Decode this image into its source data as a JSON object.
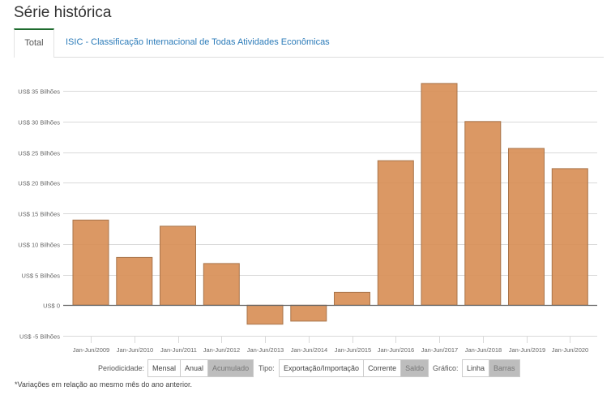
{
  "page": {
    "title": "Série histórica"
  },
  "tabs": [
    {
      "label": "Total",
      "active": true
    },
    {
      "label": "ISIC - Classificação Internacional de Todas Atividades Econômicas",
      "active": false
    }
  ],
  "chart_data": {
    "type": "bar",
    "title": "",
    "xlabel": "",
    "ylabel": "",
    "categories": [
      "Jan-Jun/2009",
      "Jan-Jun/2010",
      "Jan-Jun/2011",
      "Jan-Jun/2012",
      "Jan-Jun/2013",
      "Jan-Jun/2014",
      "Jan-Jun/2015",
      "Jan-Jun/2016",
      "Jan-Jun/2017",
      "Jan-Jun/2018",
      "Jan-Jun/2019",
      "Jan-Jun/2020"
    ],
    "series": [
      {
        "name": "Saldo",
        "unit": "US$ Bilhões",
        "values": [
          13.9,
          7.8,
          12.9,
          6.8,
          -3.1,
          -2.6,
          2.1,
          23.6,
          36.2,
          30.0,
          25.6,
          22.3
        ]
      }
    ],
    "ylim": [
      -5,
      35
    ],
    "yticks": [
      35,
      30,
      25,
      20,
      15,
      10,
      5,
      0,
      -5
    ],
    "ytick_labels": [
      "US$ 35 Bilhões",
      "US$ 30 Bilhões",
      "US$ 25 Bilhões",
      "US$ 20 Bilhões",
      "US$ 15 Bilhões",
      "US$ 10 Bilhões",
      "US$ 5 Bilhões",
      "US$ 0",
      "US$ -5 Bilhões"
    ],
    "grid": true,
    "legend": "none",
    "colors": {
      "bar_fill": "#d88f57",
      "bar_stroke": "#a8744a",
      "grid": "#d9d9d9",
      "zero_line": "#666666",
      "tick_text": "#666666"
    }
  },
  "controls": {
    "periodicidade": {
      "label": "Periodicidade:",
      "options": [
        "Mensal",
        "Anual",
        "Acumulado"
      ],
      "selected": "Acumulado"
    },
    "tipo": {
      "label": "Tipo:",
      "options": [
        "Exportação/Importação",
        "Corrente",
        "Saldo"
      ],
      "selected": "Saldo"
    },
    "grafico": {
      "label": "Gráfico:",
      "options": [
        "Linha",
        "Barras"
      ],
      "selected": "Barras"
    }
  },
  "footnote": "*Variações em relação ao mesmo mês do ano anterior."
}
